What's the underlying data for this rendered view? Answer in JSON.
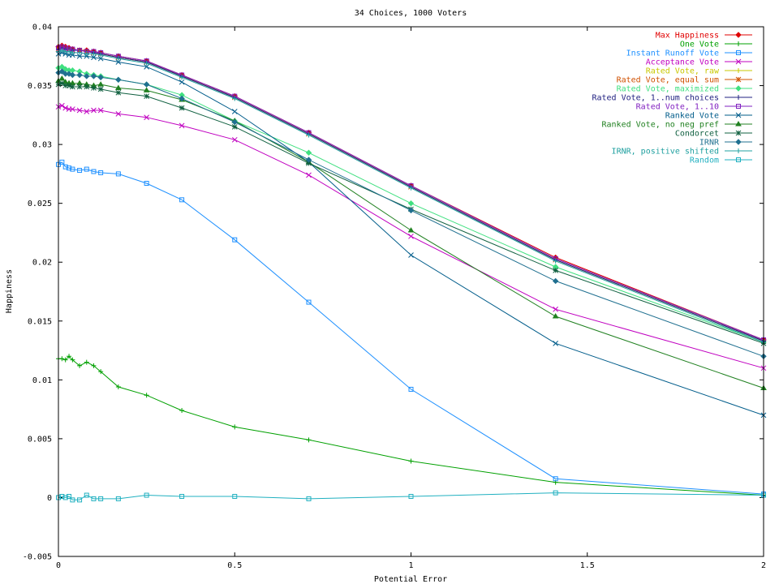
{
  "chart_data": {
    "type": "line",
    "title": "34 Choices, 1000 Voters",
    "xlabel": "Potential Error",
    "ylabel": "Happiness",
    "xlim": [
      0,
      2
    ],
    "ylim": [
      -0.005,
      0.04
    ],
    "xticks": [
      "0",
      "0.5",
      "1",
      "1.5",
      "2"
    ],
    "yticks": [
      "-0.005",
      "0",
      "0.005",
      "0.01",
      "0.015",
      "0.02",
      "0.025",
      "0.03",
      "0.035",
      "0.04"
    ],
    "grid": false,
    "legend_position": "top-right",
    "x": [
      0,
      0.01,
      0.02,
      0.03,
      0.04,
      0.06,
      0.08,
      0.1,
      0.12,
      0.17,
      0.25,
      0.35,
      0.5,
      0.71,
      1,
      1.41,
      2
    ],
    "series": [
      {
        "name": "Max Happiness",
        "color": "#e00000",
        "marker": "diamond",
        "values": [
          0.0383,
          0.0384,
          0.0383,
          0.0382,
          0.0381,
          0.038,
          0.038,
          0.0379,
          0.0378,
          0.0375,
          0.0371,
          0.0359,
          0.0341,
          0.031,
          0.0265,
          0.0204,
          0.0134
        ]
      },
      {
        "name": "One Vote",
        "color": "#00a000",
        "marker": "plus",
        "values": [
          0.0118,
          0.0118,
          0.0117,
          0.012,
          0.0117,
          0.0112,
          0.0115,
          0.0112,
          0.0107,
          0.0094,
          0.0087,
          0.0074,
          0.006,
          0.0049,
          0.0031,
          0.0013,
          0.0002
        ]
      },
      {
        "name": "Instant Runoff Vote",
        "color": "#1e90ff",
        "marker": "square",
        "values": [
          0.0283,
          0.0285,
          0.0281,
          0.028,
          0.0279,
          0.0278,
          0.0279,
          0.0277,
          0.0276,
          0.0275,
          0.0267,
          0.0253,
          0.0219,
          0.0166,
          0.0092,
          0.0016,
          0.0003
        ]
      },
      {
        "name": "Acceptance Vote",
        "color": "#c000c0",
        "marker": "x",
        "values": [
          0.0332,
          0.0333,
          0.0331,
          0.033,
          0.033,
          0.0329,
          0.0328,
          0.0329,
          0.0329,
          0.0326,
          0.0323,
          0.0316,
          0.0304,
          0.0274,
          0.0222,
          0.016,
          0.011
        ]
      },
      {
        "name": "Rated Vote, raw",
        "color": "#c8c800",
        "marker": "plus",
        "values": [
          0.0381,
          0.0382,
          0.0381,
          0.0381,
          0.038,
          0.038,
          0.0379,
          0.0378,
          0.0377,
          0.0374,
          0.037,
          0.0358,
          0.034,
          0.0309,
          0.0264,
          0.0202,
          0.0133
        ]
      },
      {
        "name": "Rated Vote, equal sum",
        "color": "#d05000",
        "marker": "star",
        "values": [
          0.0381,
          0.0382,
          0.0381,
          0.0381,
          0.038,
          0.038,
          0.0379,
          0.0378,
          0.0377,
          0.0374,
          0.037,
          0.0358,
          0.034,
          0.0309,
          0.0264,
          0.0202,
          0.0133
        ]
      },
      {
        "name": "Rated Vote, maximized",
        "color": "#40e080",
        "marker": "diamond",
        "values": [
          0.0365,
          0.0366,
          0.0364,
          0.0363,
          0.0363,
          0.0362,
          0.036,
          0.0359,
          0.0358,
          0.0355,
          0.0351,
          0.0342,
          0.032,
          0.0293,
          0.025,
          0.0196,
          0.0132
        ]
      },
      {
        "name": "Rated Vote, 1..num choices",
        "color": "#202080",
        "marker": "plus",
        "values": [
          0.0381,
          0.0382,
          0.0381,
          0.0381,
          0.038,
          0.038,
          0.0379,
          0.0378,
          0.0377,
          0.0374,
          0.037,
          0.0358,
          0.034,
          0.0309,
          0.0264,
          0.0202,
          0.0133
        ]
      },
      {
        "name": "Rated Vote, 1..10",
        "color": "#8020c0",
        "marker": "square",
        "values": [
          0.0382,
          0.0383,
          0.0382,
          0.0381,
          0.0381,
          0.038,
          0.0379,
          0.0379,
          0.0378,
          0.0375,
          0.0371,
          0.0359,
          0.0341,
          0.031,
          0.0265,
          0.0203,
          0.0134
        ]
      },
      {
        "name": "Ranked Vote",
        "color": "#005c8a",
        "marker": "x",
        "values": [
          0.0377,
          0.0378,
          0.0377,
          0.0376,
          0.0376,
          0.0375,
          0.0375,
          0.0374,
          0.0373,
          0.037,
          0.0366,
          0.0353,
          0.0328,
          0.0285,
          0.0206,
          0.0131,
          0.007
        ]
      },
      {
        "name": "Ranked Vote, no neg pref",
        "color": "#208020",
        "marker": "triangle",
        "values": [
          0.0354,
          0.0356,
          0.0353,
          0.0352,
          0.0352,
          0.0352,
          0.0351,
          0.035,
          0.0351,
          0.0348,
          0.0346,
          0.0338,
          0.032,
          0.0285,
          0.0227,
          0.0154,
          0.0093
        ]
      },
      {
        "name": "Condorcet",
        "color": "#106040",
        "marker": "star",
        "values": [
          0.0351,
          0.0352,
          0.035,
          0.035,
          0.0349,
          0.0349,
          0.0349,
          0.0348,
          0.0347,
          0.0344,
          0.0341,
          0.0331,
          0.0315,
          0.0284,
          0.0245,
          0.0193,
          0.0131
        ]
      },
      {
        "name": "IRNR",
        "color": "#207090",
        "marker": "diamond",
        "values": [
          0.0361,
          0.0362,
          0.036,
          0.036,
          0.0359,
          0.0359,
          0.0358,
          0.0358,
          0.0357,
          0.0355,
          0.0351,
          0.0339,
          0.0319,
          0.0287,
          0.0244,
          0.0184,
          0.012
        ]
      },
      {
        "name": "IRNR, positive shifted",
        "color": "#20a0a0",
        "marker": "plus",
        "values": [
          0.0379,
          0.038,
          0.0379,
          0.0379,
          0.0378,
          0.0378,
          0.0377,
          0.0377,
          0.0376,
          0.0373,
          0.0369,
          0.0357,
          0.0339,
          0.0308,
          0.0263,
          0.0201,
          0.0132
        ]
      },
      {
        "name": "Random",
        "color": "#20b0c0",
        "marker": "square",
        "values": [
          0.0,
          0.0001,
          0.0,
          0.0001,
          -0.0002,
          -0.0002,
          0.0002,
          -0.0001,
          -0.0001,
          -0.0001,
          0.0002,
          0.0001,
          0.0001,
          -0.0001,
          0.0001,
          0.0004,
          0.0002
        ]
      }
    ]
  }
}
